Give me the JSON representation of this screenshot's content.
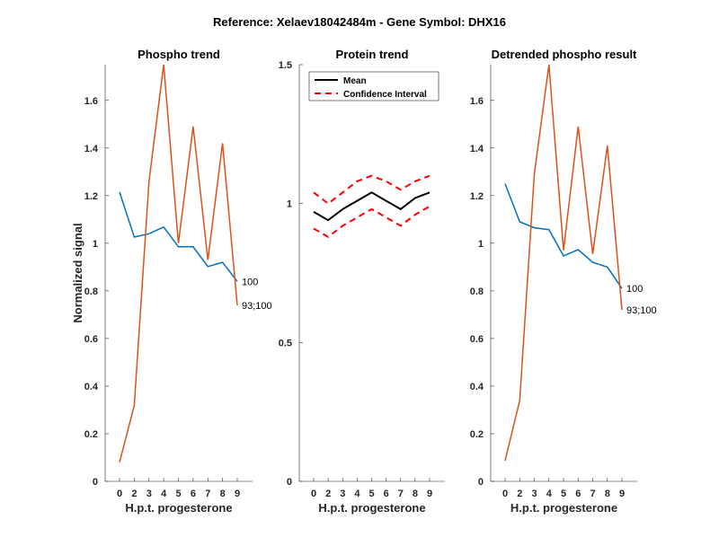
{
  "figure_title": "Reference:  Xelaev18042484m - Gene Symbol:  DHX16",
  "chart_data": [
    {
      "type": "line",
      "title": "Phospho trend",
      "xlabel": "H.p.t. progesterone",
      "ylabel": "Normalized signal",
      "categories": [
        "0",
        "2",
        "3",
        "4",
        "5",
        "6",
        "7",
        "8",
        "9"
      ],
      "ylim": [
        0,
        1.75
      ],
      "yticks": [
        0,
        0.2,
        0.4,
        0.6,
        0.8,
        1,
        1.2,
        1.4,
        1.6
      ],
      "ytick_labels": [
        "0",
        "0.2",
        "0.4",
        "0.6",
        "0.8",
        "1",
        "1.2",
        "1.4",
        "1.6"
      ],
      "series": [
        {
          "name": "100",
          "color": "#0072BD",
          "values": [
            1.215,
            1.026,
            1.04,
            1.068,
            0.985,
            0.985,
            0.902,
            0.92,
            0.84
          ],
          "end_label": "100"
        },
        {
          "name": "93;100",
          "color": "#D95319",
          "values": [
            0.08,
            0.32,
            1.26,
            1.75,
            1.0,
            1.49,
            0.93,
            1.42,
            0.74
          ],
          "end_label": "93;100"
        }
      ]
    },
    {
      "type": "line",
      "title": "Protein trend",
      "xlabel": "H.p.t. progesterone",
      "ylabel": "",
      "categories": [
        "0",
        "2",
        "3",
        "4",
        "5",
        "6",
        "7",
        "8",
        "9"
      ],
      "ylim": [
        0,
        1.5
      ],
      "yticks": [
        0,
        0.5,
        1,
        1.5
      ],
      "ytick_labels": [
        "0",
        "0.5",
        "1",
        "1.5"
      ],
      "legend": {
        "position": "top-right",
        "entries": [
          "Mean",
          "Confidence Interval"
        ]
      },
      "series": [
        {
          "name": "Mean",
          "color": "#000000",
          "style": "solid",
          "values": [
            0.97,
            0.94,
            0.98,
            1.01,
            1.04,
            1.01,
            0.98,
            1.02,
            1.04
          ]
        },
        {
          "name": "Confidence Interval upper",
          "color": "#FF0000",
          "style": "dashed",
          "values": [
            1.04,
            1.0,
            1.04,
            1.08,
            1.1,
            1.08,
            1.05,
            1.08,
            1.1
          ]
        },
        {
          "name": "Confidence Interval lower",
          "color": "#FF0000",
          "style": "dashed",
          "values": [
            0.91,
            0.88,
            0.92,
            0.95,
            0.98,
            0.95,
            0.92,
            0.96,
            0.99
          ]
        }
      ]
    },
    {
      "type": "line",
      "title": "Detrended phospho result",
      "xlabel": "H.p.t. progesterone",
      "ylabel": "",
      "categories": [
        "0",
        "2",
        "3",
        "4",
        "5",
        "6",
        "7",
        "8",
        "9"
      ],
      "ylim": [
        0,
        1.75
      ],
      "yticks": [
        0,
        0.2,
        0.4,
        0.6,
        0.8,
        1,
        1.2,
        1.4,
        1.6
      ],
      "ytick_labels": [
        "0",
        "0.2",
        "0.4",
        "0.6",
        "0.8",
        "1",
        "1.2",
        "1.4",
        "1.6"
      ],
      "series": [
        {
          "name": "100",
          "color": "#0072BD",
          "values": [
            1.25,
            1.09,
            1.065,
            1.057,
            0.947,
            0.973,
            0.92,
            0.9,
            0.81
          ],
          "end_label": "100"
        },
        {
          "name": "93;100",
          "color": "#D95319",
          "values": [
            0.087,
            0.34,
            1.29,
            1.75,
            0.97,
            1.49,
            0.955,
            1.41,
            0.72
          ],
          "end_label": "93;100"
        }
      ]
    }
  ]
}
